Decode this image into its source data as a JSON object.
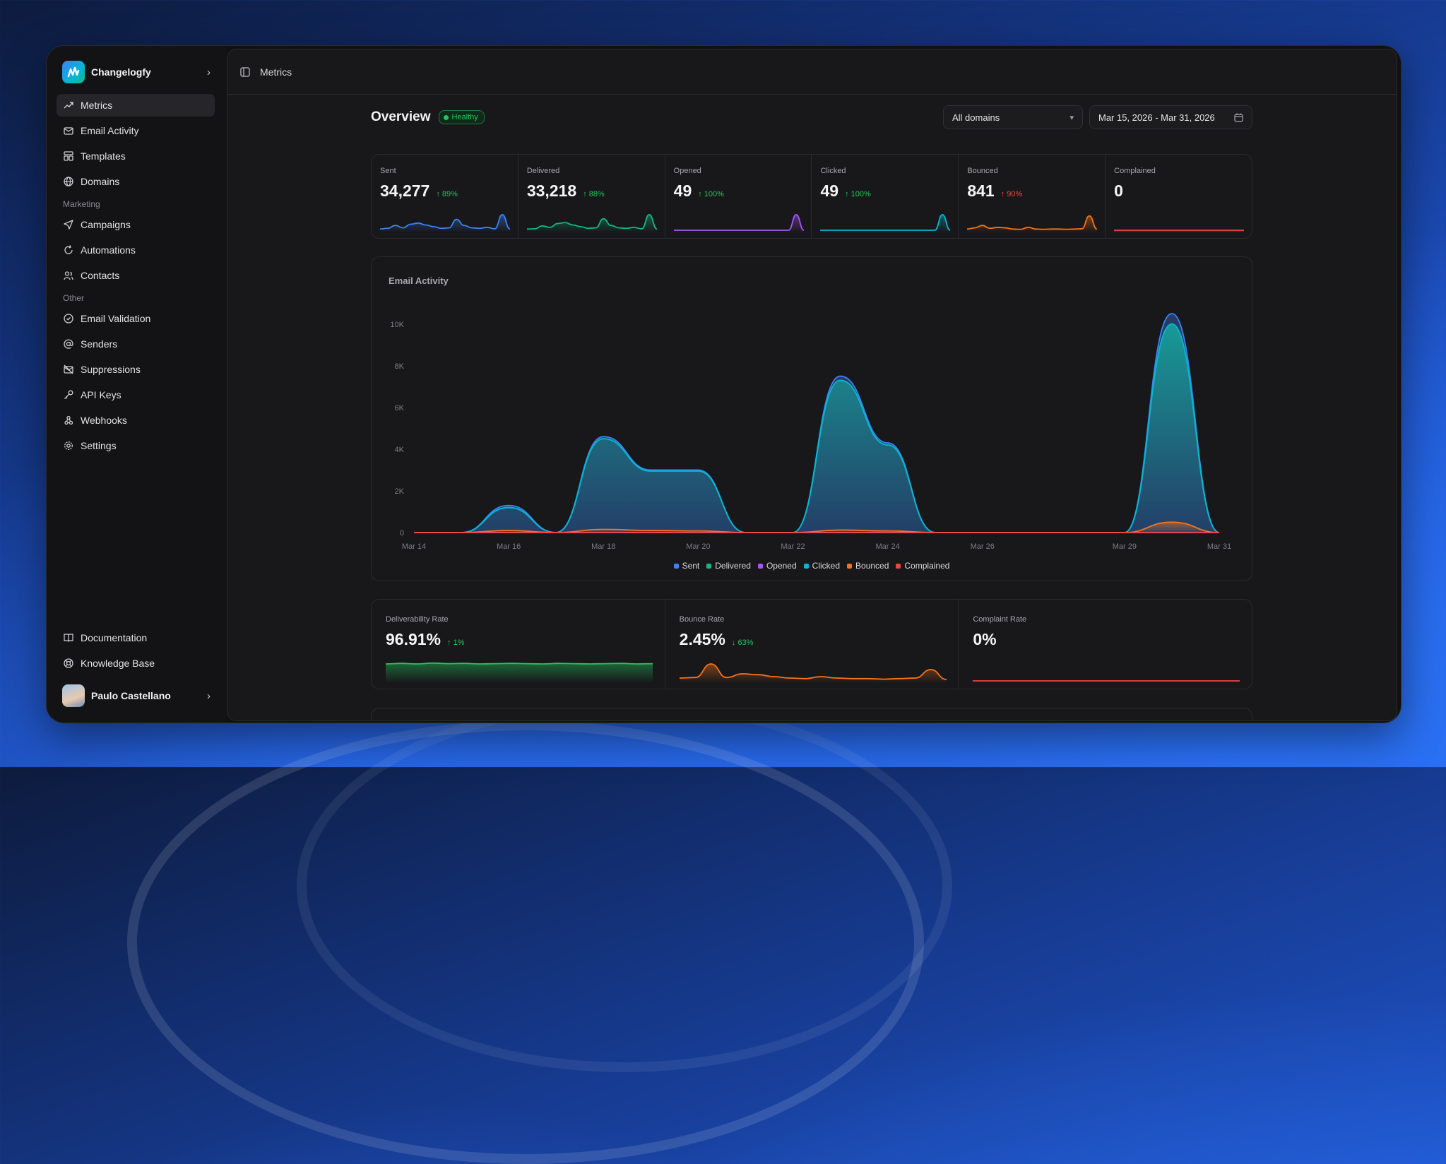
{
  "app": {
    "name": "Changelogfy"
  },
  "nav": {
    "main": [
      {
        "label": "Metrics",
        "icon": "trending-up-icon",
        "active": true
      },
      {
        "label": "Email Activity",
        "icon": "mail-activity-icon"
      },
      {
        "label": "Templates",
        "icon": "templates-icon"
      },
      {
        "label": "Domains",
        "icon": "globe-icon"
      }
    ],
    "marketing_title": "Marketing",
    "marketing": [
      {
        "label": "Campaigns",
        "icon": "send-icon"
      },
      {
        "label": "Automations",
        "icon": "refresh-icon"
      },
      {
        "label": "Contacts",
        "icon": "users-icon"
      }
    ],
    "other_title": "Other",
    "other": [
      {
        "label": "Email Validation",
        "icon": "check-circle-icon"
      },
      {
        "label": "Senders",
        "icon": "at-sign-icon"
      },
      {
        "label": "Suppressions",
        "icon": "mail-off-icon"
      },
      {
        "label": "API Keys",
        "icon": "key-icon"
      },
      {
        "label": "Webhooks",
        "icon": "webhook-icon"
      },
      {
        "label": "Settings",
        "icon": "gear-icon"
      }
    ],
    "bottom": [
      {
        "label": "Documentation",
        "icon": "book-icon"
      },
      {
        "label": "Knowledge Base",
        "icon": "lifebuoy-icon"
      }
    ]
  },
  "user": {
    "name": "Paulo Castellano"
  },
  "topbar": {
    "title": "Metrics"
  },
  "overview": {
    "title": "Overview",
    "status": "Healthy",
    "domain_select": "All domains",
    "date_range": "Mar 15, 2026 - Mar 31, 2026"
  },
  "stats": [
    {
      "label": "Sent",
      "value": "34,277",
      "delta": "↑ 89%",
      "tone": "up",
      "color": "#3b82f6",
      "spark": [
        0.05,
        0.08,
        0.2,
        0.1,
        0.25,
        0.3,
        0.22,
        0.15,
        0.08,
        0.1,
        0.45,
        0.2,
        0.1,
        0.08,
        0.12,
        0.06,
        0.65,
        0.05
      ]
    },
    {
      "label": "Delivered",
      "value": "33,218",
      "delta": "↑ 88%",
      "tone": "up",
      "color": "#10b981",
      "spark": [
        0.05,
        0.06,
        0.18,
        0.12,
        0.28,
        0.32,
        0.22,
        0.15,
        0.08,
        0.1,
        0.48,
        0.2,
        0.1,
        0.08,
        0.12,
        0.06,
        0.65,
        0.05
      ]
    },
    {
      "label": "Opened",
      "value": "49",
      "delta": "↑ 100%",
      "tone": "up",
      "color": "#a855f7",
      "spark": [
        0,
        0,
        0,
        0,
        0,
        0,
        0,
        0,
        0,
        0,
        0,
        0,
        0,
        0,
        0,
        0,
        0.65,
        0
      ]
    },
    {
      "label": "Clicked",
      "value": "49",
      "delta": "↑ 100%",
      "tone": "up",
      "color": "#06b6d4",
      "spark": [
        0,
        0,
        0,
        0,
        0,
        0,
        0,
        0,
        0,
        0,
        0,
        0,
        0,
        0,
        0,
        0,
        0.65,
        0
      ]
    },
    {
      "label": "Bounced",
      "value": "841",
      "delta": "↑ 90%",
      "tone": "bad",
      "color": "#f97316",
      "spark": [
        0.05,
        0.1,
        0.2,
        0.08,
        0.12,
        0.1,
        0.05,
        0.04,
        0.12,
        0.05,
        0.04,
        0.05,
        0.05,
        0.04,
        0.05,
        0.06,
        0.6,
        0.04
      ]
    },
    {
      "label": "Complained",
      "value": "0",
      "delta": "",
      "tone": "up",
      "color": "#ef4444",
      "spark": [
        0,
        0,
        0,
        0,
        0,
        0,
        0,
        0,
        0,
        0,
        0,
        0,
        0,
        0,
        0,
        0,
        0,
        0
      ]
    }
  ],
  "chart_data": {
    "type": "area",
    "title": "Email Activity",
    "categories": [
      "Mar 14",
      "Mar 15",
      "Mar 16",
      "Mar 17",
      "Mar 18",
      "Mar 19",
      "Mar 20",
      "Mar 21",
      "Mar 22",
      "Mar 23",
      "Mar 24",
      "Mar 25",
      "Mar 26",
      "Mar 27",
      "Mar 28",
      "Mar 29",
      "Mar 30",
      "Mar 31"
    ],
    "x_tick_labels": [
      "Mar 14",
      "Mar 16",
      "Mar 18",
      "Mar 20",
      "Mar 22",
      "Mar 24",
      "Mar 26",
      "Mar 29",
      "Mar 31"
    ],
    "y_tick_labels": [
      "0",
      "2K",
      "4K",
      "6K",
      "8K",
      "10K"
    ],
    "ylim": [
      0,
      10500
    ],
    "series": [
      {
        "name": "Sent",
        "color": "#3b82f6",
        "values": [
          0,
          0,
          1300,
          0,
          4600,
          3000,
          3000,
          0,
          0,
          7500,
          4300,
          0,
          0,
          0,
          0,
          0,
          10500,
          0
        ]
      },
      {
        "name": "Delivered",
        "color": "#10b981",
        "values": [
          0,
          0,
          1200,
          0,
          4500,
          2950,
          2950,
          0,
          0,
          7300,
          4200,
          0,
          0,
          0,
          0,
          0,
          10000,
          0
        ]
      },
      {
        "name": "Opened",
        "color": "#a855f7",
        "values": [
          0,
          0,
          0,
          0,
          0,
          0,
          0,
          0,
          0,
          0,
          0,
          0,
          0,
          0,
          0,
          0,
          0,
          0
        ]
      },
      {
        "name": "Clicked",
        "color": "#06b6d4",
        "values": [
          0,
          0,
          1200,
          0,
          4500,
          2950,
          2950,
          0,
          0,
          7300,
          4200,
          0,
          0,
          0,
          0,
          0,
          10000,
          0
        ]
      },
      {
        "name": "Bounced",
        "color": "#f97316",
        "values": [
          0,
          0,
          100,
          0,
          150,
          100,
          80,
          0,
          0,
          120,
          80,
          0,
          0,
          0,
          0,
          0,
          500,
          0
        ]
      },
      {
        "name": "Complained",
        "color": "#ef4444",
        "values": [
          0,
          0,
          0,
          0,
          0,
          0,
          0,
          0,
          0,
          0,
          0,
          0,
          0,
          0,
          0,
          0,
          0,
          0
        ]
      }
    ]
  },
  "rates": [
    {
      "label": "Deliverability Rate",
      "value": "96.91%",
      "delta": "↑ 1%",
      "tone": "up",
      "color": "#22c55e",
      "spark": [
        0.6,
        0.62,
        0.6,
        0.63,
        0.61,
        0.62,
        0.6,
        0.61,
        0.62,
        0.61,
        0.6,
        0.62,
        0.61,
        0.6,
        0.61,
        0.62,
        0.6,
        0.61
      ],
      "fill": true
    },
    {
      "label": "Bounce Rate",
      "value": "2.45%",
      "delta": "↓ 63%",
      "tone": "up",
      "color": "#f97316",
      "spark": [
        0.1,
        0.12,
        0.6,
        0.12,
        0.25,
        0.22,
        0.15,
        0.1,
        0.08,
        0.15,
        0.1,
        0.08,
        0.08,
        0.06,
        0.08,
        0.1,
        0.4,
        0.05
      ],
      "fill": true
    },
    {
      "label": "Complaint Rate",
      "value": "0%",
      "delta": "",
      "tone": "up",
      "color": "#ef4444",
      "spark": [
        0,
        0,
        0,
        0,
        0,
        0,
        0,
        0,
        0,
        0,
        0,
        0,
        0,
        0,
        0,
        0,
        0,
        0
      ],
      "fill": false
    }
  ]
}
